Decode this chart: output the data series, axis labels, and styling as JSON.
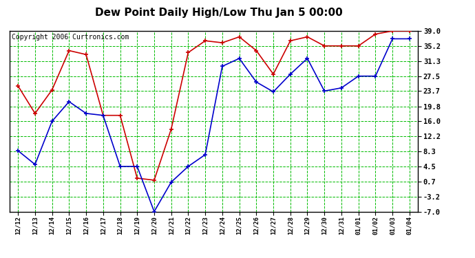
{
  "title": "Dew Point Daily High/Low Thu Jan 5 00:00",
  "copyright": "Copyright 2006 Curtronics.com",
  "dates": [
    "12/12",
    "12/13",
    "12/14",
    "12/15",
    "12/16",
    "12/17",
    "12/18",
    "12/19",
    "12/20",
    "12/21",
    "12/22",
    "12/23",
    "12/24",
    "12/25",
    "12/26",
    "12/27",
    "12/28",
    "12/29",
    "12/30",
    "12/31",
    "01/01",
    "01/02",
    "01/03",
    "01/04"
  ],
  "high": [
    25.0,
    18.0,
    24.0,
    34.0,
    33.0,
    17.5,
    17.5,
    1.5,
    1.0,
    14.0,
    33.5,
    36.5,
    36.0,
    37.5,
    34.0,
    28.0,
    36.5,
    37.5,
    35.2,
    35.2,
    35.2,
    38.2,
    39.0,
    39.0
  ],
  "low": [
    8.5,
    5.0,
    16.0,
    21.0,
    18.0,
    17.5,
    4.5,
    4.5,
    -7.0,
    0.5,
    4.5,
    7.5,
    30.0,
    32.0,
    26.0,
    23.5,
    28.0,
    32.0,
    23.7,
    24.5,
    27.5,
    27.5,
    37.0,
    37.0
  ],
  "ylim": [
    -7.0,
    39.0
  ],
  "yticks": [
    -7.0,
    -3.2,
    0.7,
    4.5,
    8.3,
    12.2,
    16.0,
    19.8,
    23.7,
    27.5,
    31.3,
    35.2,
    39.0
  ],
  "high_color": "#cc0000",
  "low_color": "#0000cc",
  "grid_color": "#00bb00",
  "bg_color": "#ffffff",
  "plot_bg": "#ffffff",
  "title_fontsize": 11,
  "copyright_fontsize": 7
}
